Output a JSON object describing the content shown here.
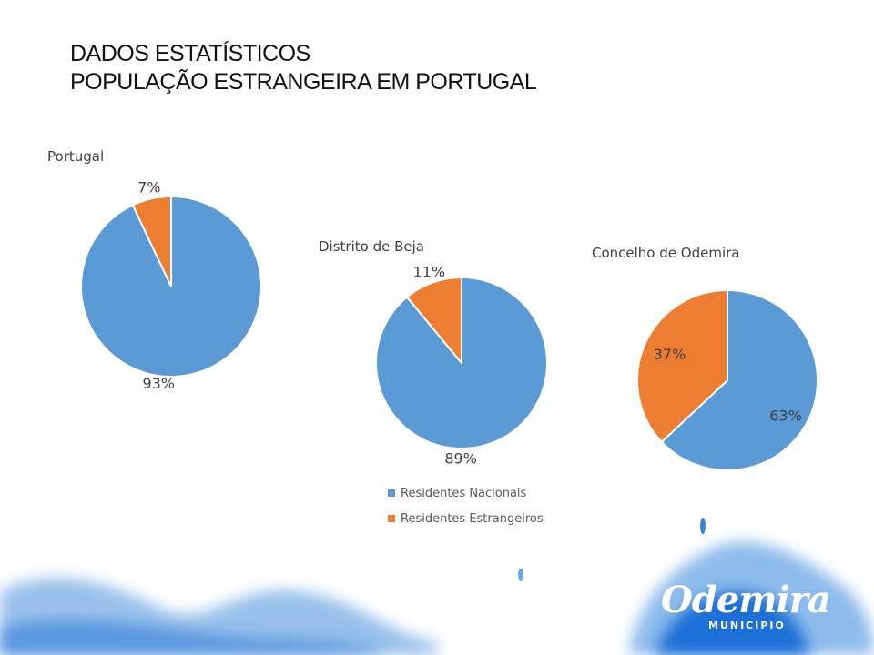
{
  "title": {
    "line1": "DADOS ESTATÍSTICOS",
    "line2": "POPULAÇÃO ESTRANGEIRA EM PORTUGAL"
  },
  "chart_data": [
    {
      "type": "pie",
      "title": "Portugal",
      "categories": [
        "Residentes Nacionais",
        "Residentes Estrangeiros"
      ],
      "values": [
        93,
        7
      ],
      "labels": [
        "93%",
        "7%"
      ]
    },
    {
      "type": "pie",
      "title": "Distrito de Beja",
      "categories": [
        "Residentes Nacionais",
        "Residentes Estrangeiros"
      ],
      "values": [
        89,
        11
      ],
      "labels": [
        "89%",
        "11%"
      ]
    },
    {
      "type": "pie",
      "title": "Concelho de Odemira",
      "categories": [
        "Residentes Nacionais",
        "Residentes Estrangeiros"
      ],
      "values": [
        63,
        37
      ],
      "labels": [
        "63%",
        "37%"
      ]
    }
  ],
  "legend": [
    {
      "label": "Residentes Nacionais",
      "color": "#5B9BD5"
    },
    {
      "label": "Residentes Estrangeiros",
      "color": "#ED7D31"
    }
  ],
  "logo": {
    "name": "Odemira",
    "sub": "MUNICÍPIO"
  }
}
